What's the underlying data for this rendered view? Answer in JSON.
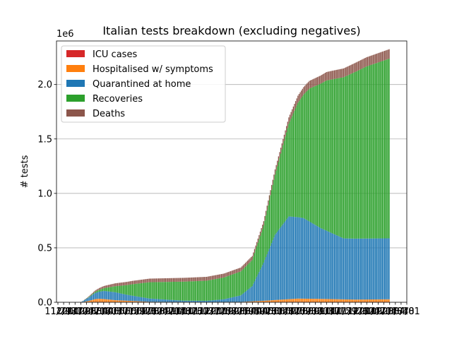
{
  "chart_data": {
    "type": "bar",
    "stacked": true,
    "title": "Italian tests breakdown (excluding negatives)",
    "ylabel": "# tests",
    "xlabel": "",
    "y_offset_label": "1e6",
    "ylim": [
      0,
      2400000
    ],
    "yticks": [
      {
        "value": 0,
        "label": "0.0"
      },
      {
        "value": 500000,
        "label": "0.5"
      },
      {
        "value": 1000000,
        "label": "1.0"
      },
      {
        "value": 1500000,
        "label": "1.5"
      },
      {
        "value": 2000000,
        "label": "2.0"
      }
    ],
    "grid": "y",
    "legend_position": "upper-left",
    "x_tick_labels": [
      "11/29",
      "12/13",
      "12/27",
      "01/10",
      "01/24",
      "02/07",
      "02/21",
      "03/06",
      "03/20",
      "04/03",
      "04/17",
      "05/01",
      "05/15",
      "05/29",
      "06/12",
      "06/26",
      "07/10",
      "07/24",
      "08/07",
      "08/21",
      "09/04",
      "09/18",
      "10/02",
      "10/16",
      "10/30",
      "11/13",
      "11/27",
      "12/11",
      "12/25",
      "01/08",
      "01/22",
      "02/05",
      "02/19",
      "03/05",
      "03/19",
      "04/02",
      "04/16",
      "04/30",
      "05/14",
      "05/28",
      "06/11",
      "06/25",
      "07/09",
      "07/23",
      "08/06",
      "08/20",
      "09/03",
      "09/17",
      "10/01",
      "10/15",
      "10/29",
      "11/12",
      "11/26",
      "12/10",
      "12/24",
      "01/07",
      "01/21",
      "02/04",
      "02/18",
      "03/04",
      "03/18",
      "04/01"
    ],
    "series": [
      {
        "name": "ICU cases",
        "color": "#d62728",
        "points": [
          [
            0,
            0
          ],
          [
            10,
            1000
          ],
          [
            14,
            3500
          ],
          [
            20,
            3000
          ],
          [
            30,
            1200
          ],
          [
            60,
            300
          ],
          [
            110,
            250
          ],
          [
            140,
            400
          ],
          [
            170,
            2500
          ],
          [
            190,
            3800
          ],
          [
            210,
            3000
          ],
          [
            240,
            2600
          ],
          [
            270,
            3300
          ]
        ]
      },
      {
        "name": "Hospitalised w/ symptoms",
        "color": "#ff7f0e",
        "points": [
          [
            0,
            0
          ],
          [
            6,
            10000
          ],
          [
            12,
            26000
          ],
          [
            16,
            29000
          ],
          [
            22,
            25000
          ],
          [
            30,
            18000
          ],
          [
            60,
            4000
          ],
          [
            110,
            1000
          ],
          [
            140,
            3000
          ],
          [
            160,
            12000
          ],
          [
            190,
            30000
          ],
          [
            210,
            28000
          ],
          [
            240,
            22000
          ],
          [
            270,
            24000
          ]
        ]
      },
      {
        "name": "Quarantined at home",
        "color": "#1f77b4",
        "points": [
          [
            0,
            0
          ],
          [
            4,
            20000
          ],
          [
            12,
            55000
          ],
          [
            20,
            75000
          ],
          [
            30,
            73000
          ],
          [
            40,
            55000
          ],
          [
            60,
            30000
          ],
          [
            90,
            12000
          ],
          [
            110,
            12000
          ],
          [
            125,
            25000
          ],
          [
            140,
            60000
          ],
          [
            150,
            140000
          ],
          [
            160,
            350000
          ],
          [
            170,
            600000
          ],
          [
            182,
            760000
          ],
          [
            195,
            740000
          ],
          [
            210,
            650000
          ],
          [
            230,
            560000
          ],
          [
            250,
            560000
          ],
          [
            270,
            560000
          ]
        ]
      },
      {
        "name": "Recoveries",
        "color": "#2ca02c",
        "points": [
          [
            0,
            0
          ],
          [
            5,
            2000
          ],
          [
            12,
            10000
          ],
          [
            20,
            25000
          ],
          [
            30,
            55000
          ],
          [
            45,
            105000
          ],
          [
            60,
            150000
          ],
          [
            90,
            175000
          ],
          [
            110,
            185000
          ],
          [
            125,
            200000
          ],
          [
            140,
            220000
          ],
          [
            150,
            240000
          ],
          [
            160,
            340000
          ],
          [
            170,
            550000
          ],
          [
            180,
            800000
          ],
          [
            190,
            1050000
          ],
          [
            200,
            1220000
          ],
          [
            215,
            1380000
          ],
          [
            230,
            1480000
          ],
          [
            250,
            1580000
          ],
          [
            270,
            1650000
          ]
        ]
      },
      {
        "name": "Deaths",
        "color": "#8c564b",
        "points": [
          [
            0,
            0
          ],
          [
            6,
            5000
          ],
          [
            12,
            12000
          ],
          [
            20,
            20000
          ],
          [
            30,
            27000
          ],
          [
            45,
            31000
          ],
          [
            60,
            33000
          ],
          [
            90,
            35000
          ],
          [
            110,
            35500
          ],
          [
            140,
            36000
          ],
          [
            150,
            37000
          ],
          [
            160,
            41000
          ],
          [
            170,
            50000
          ],
          [
            180,
            58000
          ],
          [
            190,
            66000
          ],
          [
            205,
            73000
          ],
          [
            220,
            79000
          ],
          [
            240,
            83000
          ],
          [
            270,
            87000
          ]
        ]
      }
    ]
  }
}
